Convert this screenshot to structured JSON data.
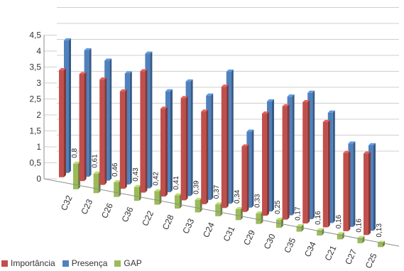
{
  "chart_data": {
    "type": "bar",
    "title": "",
    "xlabel": "",
    "ylabel": "",
    "ylim": [
      0,
      4.5
    ],
    "yticks": [
      "0",
      "0,5",
      "1",
      "1,5",
      "2",
      "2,5",
      "3",
      "3,5",
      "4",
      "4,5"
    ],
    "grid": true,
    "legend_position": "bottom-left",
    "categories": [
      "C32",
      "C23",
      "C26",
      "C36",
      "C22",
      "C28",
      "C33",
      "C24",
      "C31",
      "C29",
      "C30",
      "C35",
      "C34",
      "C21",
      "C27",
      "C25"
    ],
    "series": [
      {
        "name": "Importância",
        "color": "#c0504d",
        "values": [
          3.35,
          3.35,
          3.3,
          3.05,
          3.8,
          2.75,
          3.2,
          2.9,
          3.8,
          2.05,
          3.2,
          3.55,
          3.8,
          3.3,
          2.45,
          2.55
        ]
      },
      {
        "name": "Presença",
        "color": "#4f81bd",
        "values": [
          4.15,
          3.96,
          3.76,
          3.48,
          4.22,
          3.16,
          3.59,
          3.27,
          4.14,
          2.38,
          3.45,
          3.72,
          3.96,
          3.46,
          2.61,
          2.68
        ]
      },
      {
        "name": "GAP",
        "color": "#9bbb59",
        "values": [
          0.8,
          0.61,
          0.46,
          0.43,
          0.42,
          0.41,
          0.39,
          0.37,
          0.34,
          0.33,
          0.25,
          0.17,
          0.16,
          0.16,
          0.16,
          0.13
        ]
      }
    ],
    "data_labels": [
      "0,8",
      "0,61",
      "0,46",
      "0,43",
      "0,42",
      "0,41",
      "0,39",
      "0,37",
      "0,34",
      "0,33",
      "0,25",
      "0,17",
      "0,16",
      "0,16",
      "0,16",
      "0,13"
    ]
  }
}
